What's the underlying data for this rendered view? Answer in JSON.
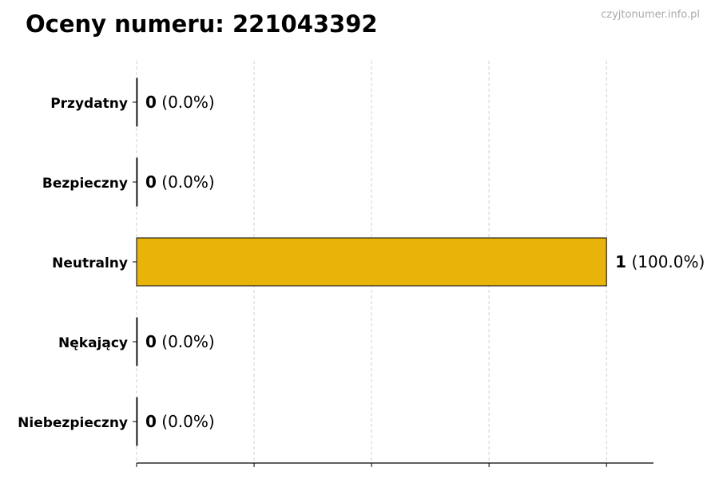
{
  "chart_data": {
    "type": "bar",
    "orientation": "horizontal",
    "title": "Oceny numeru: 221043392",
    "watermark": "czyjtonumer.info.pl",
    "categories": [
      "Przydatny",
      "Bezpieczny",
      "Neutralny",
      "Nękający",
      "Niebezpieczny"
    ],
    "values": [
      0,
      0,
      1,
      0,
      0
    ],
    "percent_labels": [
      "(0.0%)",
      "(0.0%)",
      "(100.0%)",
      "(0.0%)",
      "(0.0%)"
    ],
    "xlim": [
      0,
      1.1
    ],
    "xticks": [
      0,
      0.25,
      0.5,
      0.75,
      1
    ],
    "grid": "x dashed",
    "bar_color": "#e8b40a",
    "xlabel": "",
    "ylabel": ""
  }
}
